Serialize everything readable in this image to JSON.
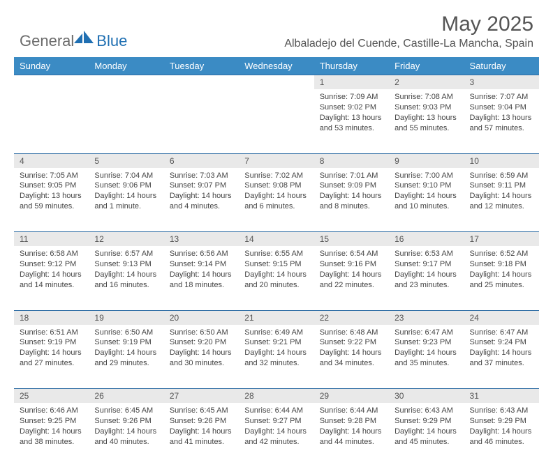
{
  "logo": {
    "general": "General",
    "blue": "Blue"
  },
  "title": "May 2025",
  "location": "Albaladejo del Cuende, Castille-La Mancha, Spain",
  "colors": {
    "header_bg": "#3b8bc4",
    "header_text": "#ffffff",
    "daynum_bg": "#e9e9e9",
    "border": "#2e6da4",
    "body_text": "#444444",
    "title_text": "#555555",
    "logo_gray": "#6b6b6b",
    "logo_blue": "#1f6fb2"
  },
  "weekdays": [
    "Sunday",
    "Monday",
    "Tuesday",
    "Wednesday",
    "Thursday",
    "Friday",
    "Saturday"
  ],
  "weeks": [
    [
      null,
      null,
      null,
      null,
      {
        "n": "1",
        "sr": "Sunrise: 7:09 AM",
        "ss": "Sunset: 9:02 PM",
        "dl": "Daylight: 13 hours and 53 minutes."
      },
      {
        "n": "2",
        "sr": "Sunrise: 7:08 AM",
        "ss": "Sunset: 9:03 PM",
        "dl": "Daylight: 13 hours and 55 minutes."
      },
      {
        "n": "3",
        "sr": "Sunrise: 7:07 AM",
        "ss": "Sunset: 9:04 PM",
        "dl": "Daylight: 13 hours and 57 minutes."
      }
    ],
    [
      {
        "n": "4",
        "sr": "Sunrise: 7:05 AM",
        "ss": "Sunset: 9:05 PM",
        "dl": "Daylight: 13 hours and 59 minutes."
      },
      {
        "n": "5",
        "sr": "Sunrise: 7:04 AM",
        "ss": "Sunset: 9:06 PM",
        "dl": "Daylight: 14 hours and 1 minute."
      },
      {
        "n": "6",
        "sr": "Sunrise: 7:03 AM",
        "ss": "Sunset: 9:07 PM",
        "dl": "Daylight: 14 hours and 4 minutes."
      },
      {
        "n": "7",
        "sr": "Sunrise: 7:02 AM",
        "ss": "Sunset: 9:08 PM",
        "dl": "Daylight: 14 hours and 6 minutes."
      },
      {
        "n": "8",
        "sr": "Sunrise: 7:01 AM",
        "ss": "Sunset: 9:09 PM",
        "dl": "Daylight: 14 hours and 8 minutes."
      },
      {
        "n": "9",
        "sr": "Sunrise: 7:00 AM",
        "ss": "Sunset: 9:10 PM",
        "dl": "Daylight: 14 hours and 10 minutes."
      },
      {
        "n": "10",
        "sr": "Sunrise: 6:59 AM",
        "ss": "Sunset: 9:11 PM",
        "dl": "Daylight: 14 hours and 12 minutes."
      }
    ],
    [
      {
        "n": "11",
        "sr": "Sunrise: 6:58 AM",
        "ss": "Sunset: 9:12 PM",
        "dl": "Daylight: 14 hours and 14 minutes."
      },
      {
        "n": "12",
        "sr": "Sunrise: 6:57 AM",
        "ss": "Sunset: 9:13 PM",
        "dl": "Daylight: 14 hours and 16 minutes."
      },
      {
        "n": "13",
        "sr": "Sunrise: 6:56 AM",
        "ss": "Sunset: 9:14 PM",
        "dl": "Daylight: 14 hours and 18 minutes."
      },
      {
        "n": "14",
        "sr": "Sunrise: 6:55 AM",
        "ss": "Sunset: 9:15 PM",
        "dl": "Daylight: 14 hours and 20 minutes."
      },
      {
        "n": "15",
        "sr": "Sunrise: 6:54 AM",
        "ss": "Sunset: 9:16 PM",
        "dl": "Daylight: 14 hours and 22 minutes."
      },
      {
        "n": "16",
        "sr": "Sunrise: 6:53 AM",
        "ss": "Sunset: 9:17 PM",
        "dl": "Daylight: 14 hours and 23 minutes."
      },
      {
        "n": "17",
        "sr": "Sunrise: 6:52 AM",
        "ss": "Sunset: 9:18 PM",
        "dl": "Daylight: 14 hours and 25 minutes."
      }
    ],
    [
      {
        "n": "18",
        "sr": "Sunrise: 6:51 AM",
        "ss": "Sunset: 9:19 PM",
        "dl": "Daylight: 14 hours and 27 minutes."
      },
      {
        "n": "19",
        "sr": "Sunrise: 6:50 AM",
        "ss": "Sunset: 9:19 PM",
        "dl": "Daylight: 14 hours and 29 minutes."
      },
      {
        "n": "20",
        "sr": "Sunrise: 6:50 AM",
        "ss": "Sunset: 9:20 PM",
        "dl": "Daylight: 14 hours and 30 minutes."
      },
      {
        "n": "21",
        "sr": "Sunrise: 6:49 AM",
        "ss": "Sunset: 9:21 PM",
        "dl": "Daylight: 14 hours and 32 minutes."
      },
      {
        "n": "22",
        "sr": "Sunrise: 6:48 AM",
        "ss": "Sunset: 9:22 PM",
        "dl": "Daylight: 14 hours and 34 minutes."
      },
      {
        "n": "23",
        "sr": "Sunrise: 6:47 AM",
        "ss": "Sunset: 9:23 PM",
        "dl": "Daylight: 14 hours and 35 minutes."
      },
      {
        "n": "24",
        "sr": "Sunrise: 6:47 AM",
        "ss": "Sunset: 9:24 PM",
        "dl": "Daylight: 14 hours and 37 minutes."
      }
    ],
    [
      {
        "n": "25",
        "sr": "Sunrise: 6:46 AM",
        "ss": "Sunset: 9:25 PM",
        "dl": "Daylight: 14 hours and 38 minutes."
      },
      {
        "n": "26",
        "sr": "Sunrise: 6:45 AM",
        "ss": "Sunset: 9:26 PM",
        "dl": "Daylight: 14 hours and 40 minutes."
      },
      {
        "n": "27",
        "sr": "Sunrise: 6:45 AM",
        "ss": "Sunset: 9:26 PM",
        "dl": "Daylight: 14 hours and 41 minutes."
      },
      {
        "n": "28",
        "sr": "Sunrise: 6:44 AM",
        "ss": "Sunset: 9:27 PM",
        "dl": "Daylight: 14 hours and 42 minutes."
      },
      {
        "n": "29",
        "sr": "Sunrise: 6:44 AM",
        "ss": "Sunset: 9:28 PM",
        "dl": "Daylight: 14 hours and 44 minutes."
      },
      {
        "n": "30",
        "sr": "Sunrise: 6:43 AM",
        "ss": "Sunset: 9:29 PM",
        "dl": "Daylight: 14 hours and 45 minutes."
      },
      {
        "n": "31",
        "sr": "Sunrise: 6:43 AM",
        "ss": "Sunset: 9:29 PM",
        "dl": "Daylight: 14 hours and 46 minutes."
      }
    ]
  ]
}
